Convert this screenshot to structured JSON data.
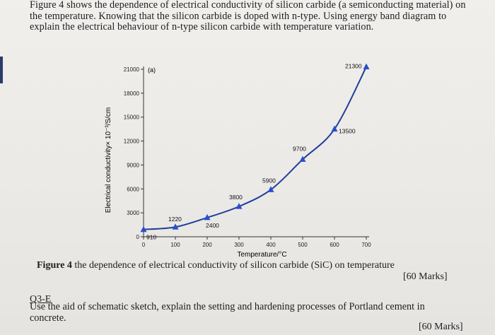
{
  "question": {
    "text": "Figure 4 shows the dependence of electrical conductivity of silicon carbide (a semiconducting material) on the temperature. Knowing that the silicon carbide is doped with n-type. Using energy band diagram to explain the electrical behaviour of n-type silicon carbide with temperature variation."
  },
  "figure": {
    "caption_bold": "Figure 4",
    "caption_rest": " the dependence of electrical conductivity of silicon carbide (SiC) on temperature",
    "marks": "[60 Marks]"
  },
  "q3": {
    "heading": "Q3-E",
    "text": "Use the aid of schematic sketch, explain the setting and hardening processes of Portland cement in concrete.",
    "marks": "[60 Marks]"
  },
  "chart_data": {
    "type": "line",
    "panel_label": "(a)",
    "xlabel": "Temperature/°C",
    "ylabel": "Electrical conductivity× 10⁻³/S/cm",
    "xlim": [
      0,
      700
    ],
    "ylim": [
      0,
      21000
    ],
    "xticks": [
      0,
      100,
      200,
      300,
      400,
      500,
      600,
      700
    ],
    "yticks": [
      0,
      3000,
      6000,
      9000,
      12000,
      15000,
      18000,
      21000
    ],
    "grid": false,
    "points": [
      {
        "x": 0,
        "y": 910,
        "label": "910"
      },
      {
        "x": 100,
        "y": 1220,
        "label": "1220"
      },
      {
        "x": 200,
        "y": 2400,
        "label": "2400"
      },
      {
        "x": 300,
        "y": 3800,
        "label": "3800"
      },
      {
        "x": 400,
        "y": 5900,
        "label": "5900"
      },
      {
        "x": 500,
        "y": 9700,
        "label": "9700"
      },
      {
        "x": 600,
        "y": 13500,
        "label": "13500"
      },
      {
        "x": 700,
        "y": 21300,
        "label": "21300"
      }
    ],
    "line_color": "#1f3f9a",
    "marker_color": "#2a50c8"
  }
}
